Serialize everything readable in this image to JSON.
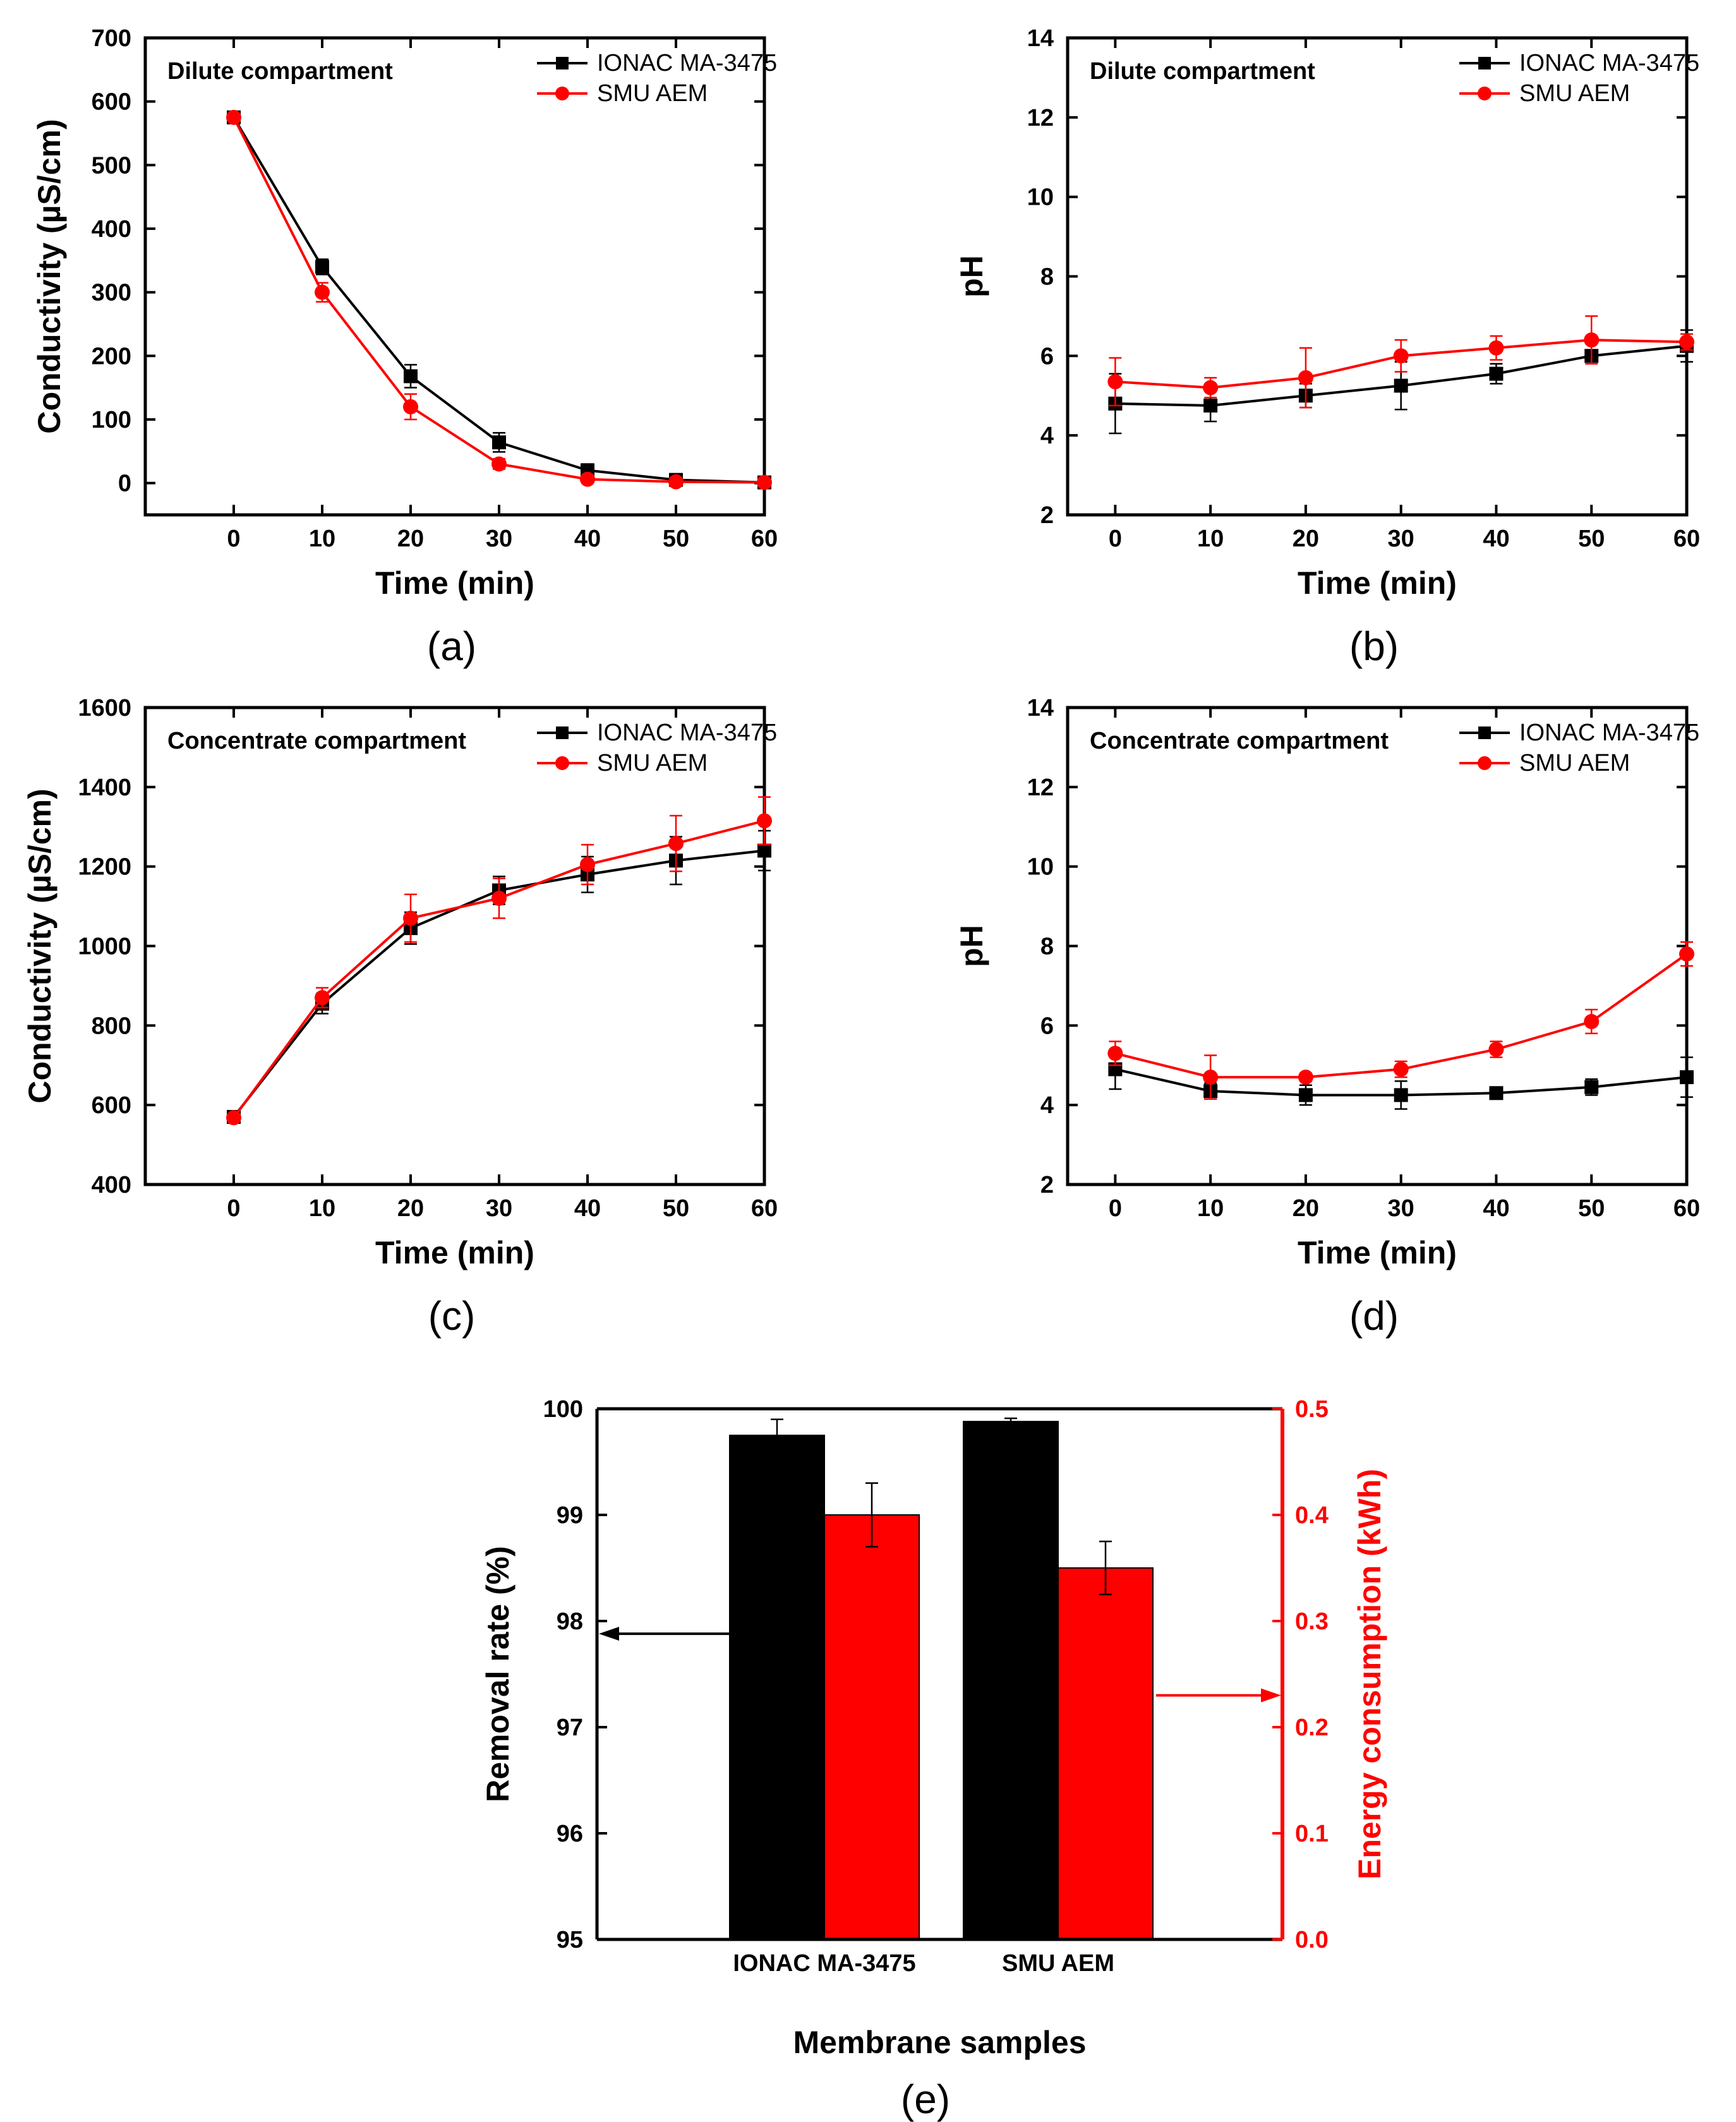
{
  "colors": {
    "ionac": "#000000",
    "smu": "#ff0000",
    "axis": "#000000"
  },
  "chart_data": [
    {
      "id": "a",
      "type": "line",
      "panel_label": "(a)",
      "title": "Dilute compartment",
      "xlabel": "Time (min)",
      "ylabel": "Conductivity (µS/cm)",
      "xlim": [
        -10,
        60
      ],
      "ylim": [
        -50,
        700
      ],
      "xticks": [
        0,
        10,
        20,
        30,
        40,
        50,
        60
      ],
      "yticks": [
        0,
        100,
        200,
        300,
        400,
        500,
        600,
        700
      ],
      "legend_position": "top-right",
      "x": [
        0,
        10,
        20,
        30,
        40,
        50,
        60
      ],
      "series": [
        {
          "name": "IONAC MA-3475",
          "color": "#000000",
          "marker": "square",
          "values": [
            575,
            340,
            168,
            64,
            20,
            5,
            1
          ],
          "errors": [
            8,
            12,
            18,
            15,
            10,
            5,
            2
          ]
        },
        {
          "name": "SMU AEM",
          "color": "#ff0000",
          "marker": "circle",
          "values": [
            575,
            300,
            120,
            30,
            6,
            2,
            1
          ],
          "errors": [
            6,
            15,
            20,
            8,
            4,
            2,
            1
          ]
        }
      ]
    },
    {
      "id": "b",
      "type": "line",
      "panel_label": "(b)",
      "title": "Dilute compartment",
      "xlabel": "Time (min)",
      "ylabel": "pH",
      "xlim": [
        -5,
        60
      ],
      "ylim": [
        2,
        14
      ],
      "xticks": [
        0,
        10,
        20,
        30,
        40,
        50,
        60
      ],
      "yticks": [
        2,
        4,
        6,
        8,
        10,
        12,
        14
      ],
      "legend_position": "top-right",
      "x": [
        0,
        10,
        20,
        30,
        40,
        50,
        60
      ],
      "series": [
        {
          "name": "IONAC MA-3475",
          "color": "#000000",
          "marker": "square",
          "values": [
            4.8,
            4.75,
            5.0,
            5.25,
            5.55,
            6.0,
            6.25
          ],
          "errors": [
            0.75,
            0.4,
            0.3,
            0.6,
            0.25,
            0.15,
            0.4
          ]
        },
        {
          "name": "SMU AEM",
          "color": "#ff0000",
          "marker": "circle",
          "values": [
            5.35,
            5.2,
            5.45,
            6.0,
            6.2,
            6.4,
            6.35
          ],
          "errors": [
            0.6,
            0.25,
            0.75,
            0.4,
            0.3,
            0.6,
            0.2
          ]
        }
      ]
    },
    {
      "id": "c",
      "type": "line",
      "panel_label": "(c)",
      "title": "Concentrate compartment",
      "xlabel": "Time (min)",
      "ylabel": "Conductivity (µS/cm)",
      "xlim": [
        -10,
        60
      ],
      "ylim": [
        400,
        1600
      ],
      "xticks": [
        0,
        10,
        20,
        30,
        40,
        50,
        60
      ],
      "yticks": [
        400,
        600,
        800,
        1000,
        1200,
        1400,
        1600
      ],
      "legend_position": "top-right",
      "x": [
        0,
        10,
        20,
        30,
        40,
        50,
        60
      ],
      "series": [
        {
          "name": "IONAC MA-3475",
          "color": "#000000",
          "marker": "square",
          "values": [
            570,
            855,
            1045,
            1140,
            1180,
            1215,
            1240
          ],
          "errors": [
            10,
            25,
            40,
            35,
            45,
            60,
            50
          ]
        },
        {
          "name": "SMU AEM",
          "color": "#ff0000",
          "marker": "circle",
          "values": [
            568,
            870,
            1070,
            1120,
            1205,
            1258,
            1315
          ],
          "errors": [
            10,
            25,
            60,
            50,
            50,
            70,
            60
          ]
        }
      ]
    },
    {
      "id": "d",
      "type": "line",
      "panel_label": "(d)",
      "title": "Concentrate compartment",
      "xlabel": "Time (min)",
      "ylabel": "pH",
      "xlim": [
        -5,
        60
      ],
      "ylim": [
        2,
        14
      ],
      "xticks": [
        0,
        10,
        20,
        30,
        40,
        50,
        60
      ],
      "yticks": [
        2,
        4,
        6,
        8,
        10,
        12,
        14
      ],
      "legend_position": "top-right",
      "x": [
        0,
        10,
        20,
        30,
        40,
        50,
        60
      ],
      "series": [
        {
          "name": "IONAC MA-3475",
          "color": "#000000",
          "marker": "square",
          "values": [
            4.9,
            4.35,
            4.25,
            4.25,
            4.3,
            4.45,
            4.7
          ],
          "errors": [
            0.5,
            0.2,
            0.25,
            0.35,
            0.05,
            0.2,
            0.5
          ]
        },
        {
          "name": "SMU AEM",
          "color": "#ff0000",
          "marker": "circle",
          "values": [
            5.3,
            4.7,
            4.7,
            4.9,
            5.4,
            6.1,
            7.8
          ],
          "errors": [
            0.3,
            0.55,
            0.1,
            0.2,
            0.2,
            0.3,
            0.3
          ]
        }
      ]
    },
    {
      "id": "e",
      "type": "bar",
      "panel_label": "(e)",
      "xlabel": "Membrane samples",
      "ylabel": "Removal rate (%)",
      "y2label": "Energy consumption (kWh)",
      "categories": [
        "IONAC MA-3475",
        "SMU AEM"
      ],
      "ylim": [
        95,
        100
      ],
      "y2lim": [
        0.0,
        0.5
      ],
      "yticks": [
        95,
        96,
        97,
        98,
        99,
        100
      ],
      "y2ticks": [
        0.0,
        0.1,
        0.2,
        0.3,
        0.4,
        0.5
      ],
      "series": [
        {
          "name": "Removal rate",
          "axis": "left",
          "color": "#000000",
          "values": [
            99.75,
            99.88
          ],
          "errors": [
            0.15,
            0.03
          ]
        },
        {
          "name": "Energy consumption",
          "axis": "right",
          "color": "#ff0000",
          "values": [
            0.4,
            0.35
          ],
          "errors": [
            0.03,
            0.025
          ]
        }
      ],
      "annotations": [
        {
          "type": "arrow",
          "direction": "left",
          "axis": "left",
          "y": 97.88
        },
        {
          "type": "arrow",
          "direction": "right",
          "axis": "right",
          "y": 0.23
        }
      ]
    }
  ]
}
